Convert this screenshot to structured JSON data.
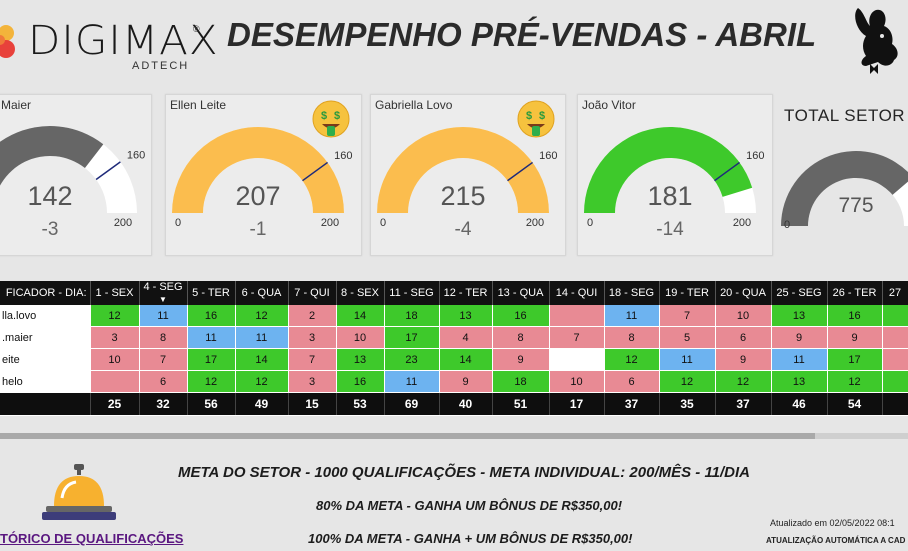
{
  "header": {
    "logo_text": "DIGIMAX",
    "logo_sub": "ADTECH",
    "logo_reg": "®",
    "title": "DESEMPENHO PRÉ-VENDAS - ABRIL"
  },
  "gauges": [
    {
      "name": "Maier",
      "value": "142",
      "diff": "-3",
      "min": "",
      "max": "200",
      "target": "160",
      "value_num": 142,
      "max_num": 200,
      "target_num": 160,
      "color": "#666666",
      "emoji": false
    },
    {
      "name": "Ellen Leite",
      "value": "207",
      "diff": "-1",
      "min": "0",
      "max": "200",
      "target": "160",
      "value_num": 207,
      "max_num": 200,
      "target_num": 160,
      "color": "#fbbd4e",
      "emoji": true
    },
    {
      "name": "Gabriella Lovo",
      "value": "215",
      "diff": "-4",
      "min": "0",
      "max": "200",
      "target": "160",
      "value_num": 215,
      "max_num": 200,
      "target_num": 160,
      "color": "#fbbd4e",
      "emoji": true
    },
    {
      "name": "João Vitor",
      "value": "181",
      "diff": "-14",
      "min": "0",
      "max": "200",
      "target": "160",
      "value_num": 181,
      "max_num": 200,
      "target_num": 160,
      "color": "#3ec92b",
      "emoji": false
    }
  ],
  "total": {
    "title": "TOTAL SETOR",
    "value": "775",
    "min": "0",
    "value_num": 775,
    "max_num": 1000,
    "color": "#666666"
  },
  "table": {
    "header_label": "FICADOR - DIA:",
    "columns": [
      "1 - SEX",
      "4 - SEG",
      "5 - TER",
      "6 - QUA",
      "7 - QUI",
      "8 - SEX",
      "11 - SEG",
      "12 - TER",
      "13 - QUA",
      "14 - QUI",
      "18 - SEG",
      "19 - TER",
      "20 - QUA",
      "25 - SEG",
      "26 - TER",
      "27"
    ],
    "sort_indicator": "▼",
    "rows": [
      {
        "name": "lla.lovo",
        "cells": [
          [
            "12",
            "g"
          ],
          [
            "11",
            "b"
          ],
          [
            "16",
            "g"
          ],
          [
            "12",
            "g"
          ],
          [
            "2",
            "p"
          ],
          [
            "14",
            "g"
          ],
          [
            "18",
            "g"
          ],
          [
            "13",
            "g"
          ],
          [
            "16",
            "g"
          ],
          [
            "",
            "p"
          ],
          [
            "11",
            "b"
          ],
          [
            "7",
            "p"
          ],
          [
            "10",
            "p"
          ],
          [
            "13",
            "g"
          ],
          [
            "16",
            "g"
          ],
          [
            "",
            "g"
          ]
        ]
      },
      {
        "name": ".maier",
        "cells": [
          [
            "3",
            "p"
          ],
          [
            "8",
            "p"
          ],
          [
            "11",
            "b"
          ],
          [
            "11",
            "b"
          ],
          [
            "3",
            "p"
          ],
          [
            "10",
            "p"
          ],
          [
            "17",
            "g"
          ],
          [
            "4",
            "p"
          ],
          [
            "8",
            "p"
          ],
          [
            "7",
            "p"
          ],
          [
            "8",
            "p"
          ],
          [
            "5",
            "p"
          ],
          [
            "6",
            "p"
          ],
          [
            "9",
            "p"
          ],
          [
            "9",
            "p"
          ],
          [
            "",
            "p"
          ]
        ]
      },
      {
        "name": "eite",
        "cells": [
          [
            "10",
            "p"
          ],
          [
            "7",
            "p"
          ],
          [
            "17",
            "g"
          ],
          [
            "14",
            "g"
          ],
          [
            "7",
            "p"
          ],
          [
            "13",
            "g"
          ],
          [
            "23",
            "g"
          ],
          [
            "14",
            "g"
          ],
          [
            "9",
            "p"
          ],
          [
            "",
            "w"
          ],
          [
            "12",
            "g"
          ],
          [
            "11",
            "b"
          ],
          [
            "9",
            "p"
          ],
          [
            "11",
            "b"
          ],
          [
            "17",
            "g"
          ],
          [
            "",
            "p"
          ]
        ]
      },
      {
        "name": "helo",
        "cells": [
          [
            "",
            "p"
          ],
          [
            "6",
            "p"
          ],
          [
            "12",
            "g"
          ],
          [
            "12",
            "g"
          ],
          [
            "3",
            "p"
          ],
          [
            "16",
            "g"
          ],
          [
            "11",
            "b"
          ],
          [
            "9",
            "p"
          ],
          [
            "18",
            "g"
          ],
          [
            "10",
            "p"
          ],
          [
            "6",
            "p"
          ],
          [
            "12",
            "g"
          ],
          [
            "12",
            "g"
          ],
          [
            "13",
            "g"
          ],
          [
            "12",
            "g"
          ],
          [
            "",
            "g"
          ]
        ]
      }
    ],
    "totals": [
      "25",
      "32",
      "56",
      "49",
      "15",
      "53",
      "69",
      "40",
      "51",
      "17",
      "37",
      "35",
      "37",
      "46",
      "54",
      ""
    ]
  },
  "footer": {
    "link": "TÓRICO DE QUALIFICAÇÕES",
    "meta_line1": "META DO SETOR - 1000 QUALIFICAÇÕES - META INDIVIDUAL: 200/MÊS - 11/DIA",
    "meta_line2": "80% DA META - GANHA UM BÔNUS DE R$350,00!",
    "meta_line3": "100% DA META - GANHA + UM BÔNUS DE R$350,00!",
    "updated": "Atualizado em 02/05/2022 08:1",
    "auto_update": "ATUALIZAÇÃO AUTOMÁTICA A CAD"
  },
  "colors": {
    "green": "#3ec92b",
    "pink": "#e88a94",
    "blue": "#6db3f0",
    "gold": "#fbbd4e",
    "gray": "#666666"
  },
  "icons": [
    "logo-icon",
    "playboy-bunny-icon",
    "money-face-icon",
    "service-bell-icon"
  ]
}
